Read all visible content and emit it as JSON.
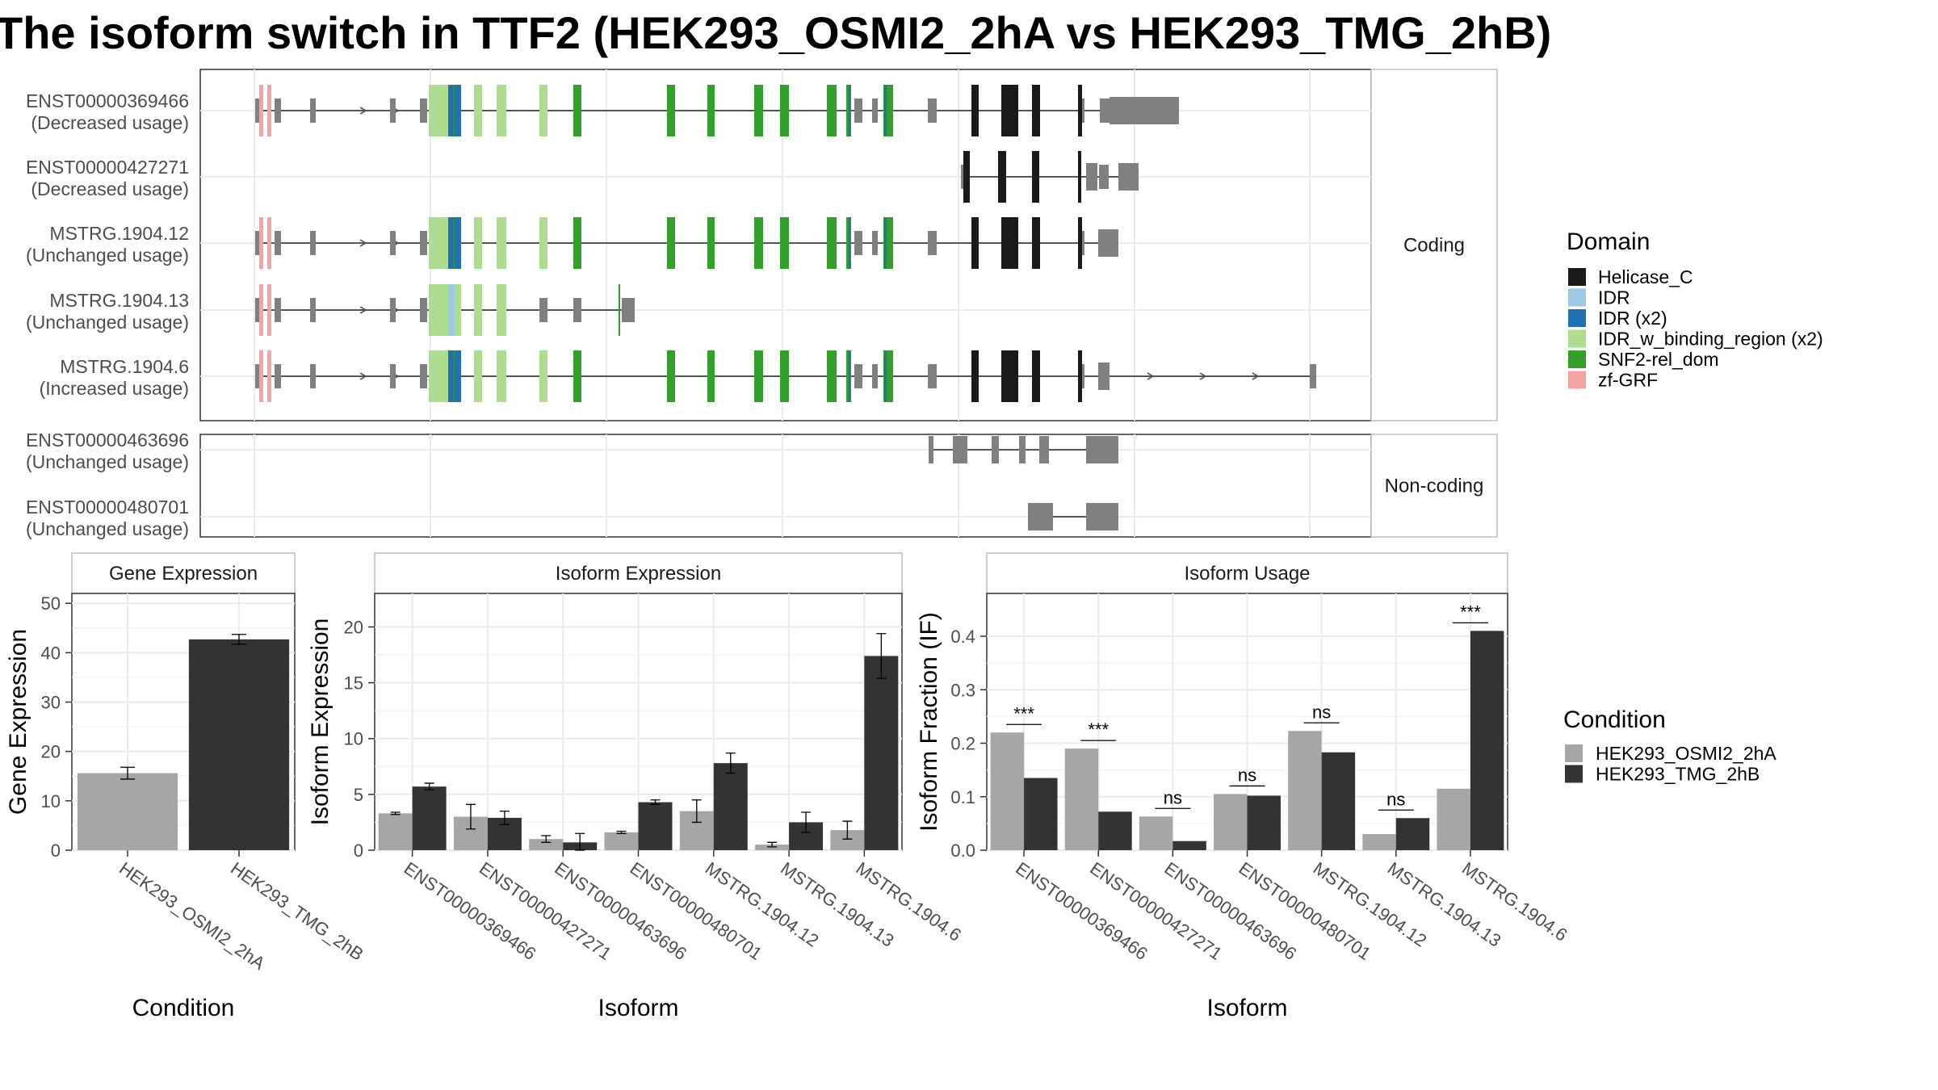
{
  "title": "The isoform switch in TTF2 (HEK293_OSMI2_2hA vs HEK293_TMG_2hB)",
  "chart_data": [
    {
      "type": "gene-structure",
      "panels": [
        {
          "strip": "Coding",
          "isoforms": [
            {
              "id": "ENST00000369466",
              "usage": "(Decreased usage)"
            },
            {
              "id": "ENST00000427271",
              "usage": "(Decreased usage)"
            },
            {
              "id": "MSTRG.1904.12",
              "usage": "(Unchanged usage)"
            },
            {
              "id": "MSTRG.1904.13",
              "usage": "(Unchanged usage)"
            },
            {
              "id": "MSTRG.1904.6",
              "usage": "(Increased usage)"
            }
          ]
        },
        {
          "strip": "Non-coding",
          "isoforms": [
            {
              "id": "ENST00000463696",
              "usage": "(Unchanged usage)"
            },
            {
              "id": "ENST00000480701",
              "usage": "(Unchanged usage)"
            }
          ]
        }
      ],
      "legend": {
        "title": "Domain",
        "entries": [
          {
            "label": "Helicase_C",
            "color": "#1a1a1a"
          },
          {
            "label": "IDR",
            "color": "#9ecae1"
          },
          {
            "label": "IDR (x2)",
            "color": "#2171b5"
          },
          {
            "label": "IDR_w_binding_region (x2)",
            "color": "#addd8e"
          },
          {
            "label": "SNF2-rel_dom",
            "color": "#33a02c"
          },
          {
            "label": "zf-GRF",
            "color": "#f4a3a3"
          }
        ]
      }
    },
    {
      "type": "bar",
      "strip": "Gene Expression",
      "ylabel": "Gene Expression",
      "xlabel": "Condition",
      "ylim": [
        0,
        52
      ],
      "yticks": [
        0,
        10,
        20,
        30,
        40,
        50
      ],
      "categories": [
        "HEK293_OSMI2_2hA",
        "HEK293_TMG_2hB"
      ],
      "values": [
        15.6,
        42.7
      ],
      "errors": [
        1.2,
        1.0
      ]
    },
    {
      "type": "bar",
      "strip": "Isoform Expression",
      "ylabel": "Isoform Expression",
      "xlabel": "Isoform",
      "ylim": [
        0,
        23
      ],
      "yticks": [
        0,
        5,
        10,
        15,
        20
      ],
      "categories": [
        "ENST00000369466",
        "ENST00000427271",
        "ENST00000463696",
        "ENST00000480701",
        "MSTRG.1904.12",
        "MSTRG.1904.13",
        "MSTRG.1904.6"
      ],
      "series": [
        {
          "values": [
            3.3,
            3.0,
            1.0,
            1.6,
            3.5,
            0.5,
            1.8
          ],
          "errors": [
            0.1,
            1.1,
            0.3,
            0.1,
            1.0,
            0.2,
            0.8
          ]
        },
        {
          "values": [
            5.7,
            2.9,
            0.7,
            4.3,
            7.8,
            2.5,
            17.4
          ],
          "errors": [
            0.3,
            0.6,
            0.8,
            0.2,
            0.9,
            0.9,
            2.0
          ]
        }
      ]
    },
    {
      "type": "bar",
      "strip": "Isoform Usage",
      "ylabel": "Isoform Fraction (IF)",
      "xlabel": "Isoform",
      "ylim": [
        0,
        0.48
      ],
      "yticks": [
        0.0,
        0.1,
        0.2,
        0.3,
        0.4
      ],
      "ytick_labels": [
        "0.0",
        "0.1",
        "0.2",
        "0.3",
        "0.4"
      ],
      "categories": [
        "ENST00000369466",
        "ENST00000427271",
        "ENST00000463696",
        "ENST00000480701",
        "MSTRG.1904.12",
        "MSTRG.1904.13",
        "MSTRG.1904.6"
      ],
      "series": [
        {
          "values": [
            0.22,
            0.19,
            0.063,
            0.105,
            0.223,
            0.03,
            0.115
          ]
        },
        {
          "values": [
            0.135,
            0.072,
            0.017,
            0.102,
            0.183,
            0.06,
            0.41
          ]
        }
      ],
      "significance": [
        "***",
        "***",
        "ns",
        "ns",
        "ns",
        "ns",
        "***"
      ]
    }
  ],
  "condition_legend": {
    "title": "Condition",
    "entries": [
      {
        "label": "HEK293_OSMI2_2hA",
        "color": "#a6a6a6"
      },
      {
        "label": "HEK293_TMG_2hB",
        "color": "#333333"
      }
    ]
  }
}
